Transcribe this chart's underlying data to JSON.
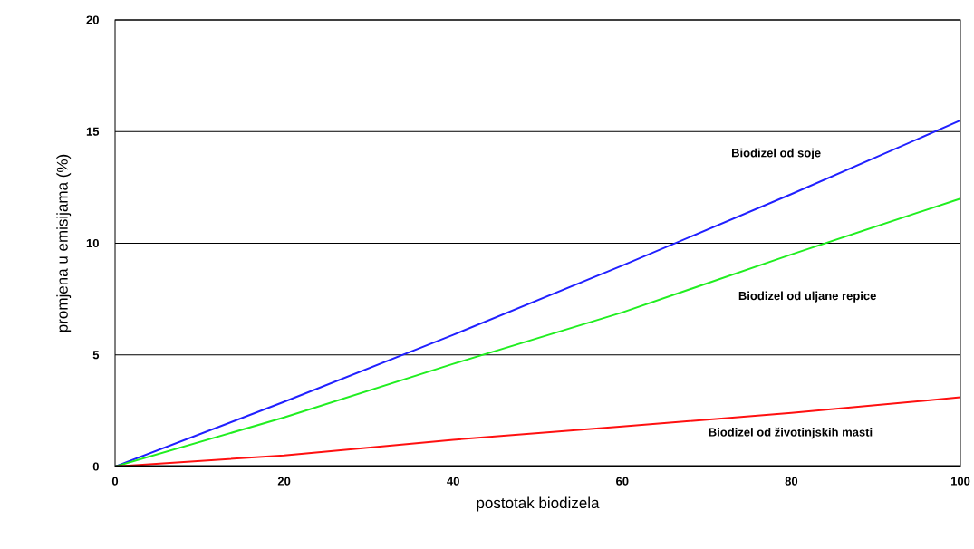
{
  "chart_data": {
    "type": "line",
    "xlabel": "postotak biodizela",
    "ylabel": "promjena u emisijama (%)",
    "x": [
      0,
      20,
      40,
      60,
      80,
      100
    ],
    "series": [
      {
        "color": "#2020ff",
        "values": [
          0,
          2.9,
          5.9,
          9.0,
          12.2,
          15.5
        ]
      },
      {
        "color": "#20ee20",
        "values": [
          0,
          2.2,
          4.6,
          6.9,
          9.5,
          12.0
        ]
      },
      {
        "color": "#ff1010",
        "values": [
          0,
          0.5,
          1.2,
          1.8,
          2.4,
          3.1
        ]
      }
    ],
    "xlim": [
      0,
      100
    ],
    "ylim": [
      0,
      20
    ],
    "xticks": [
      0,
      20,
      40,
      60,
      80,
      100
    ],
    "yticks": [
      0,
      5,
      10,
      15,
      20
    ],
    "grid": "y",
    "annotations": [
      "Biodizel od soje",
      "Biodizel od uljane repice",
      "Biodizel od životinjskih masti"
    ]
  }
}
